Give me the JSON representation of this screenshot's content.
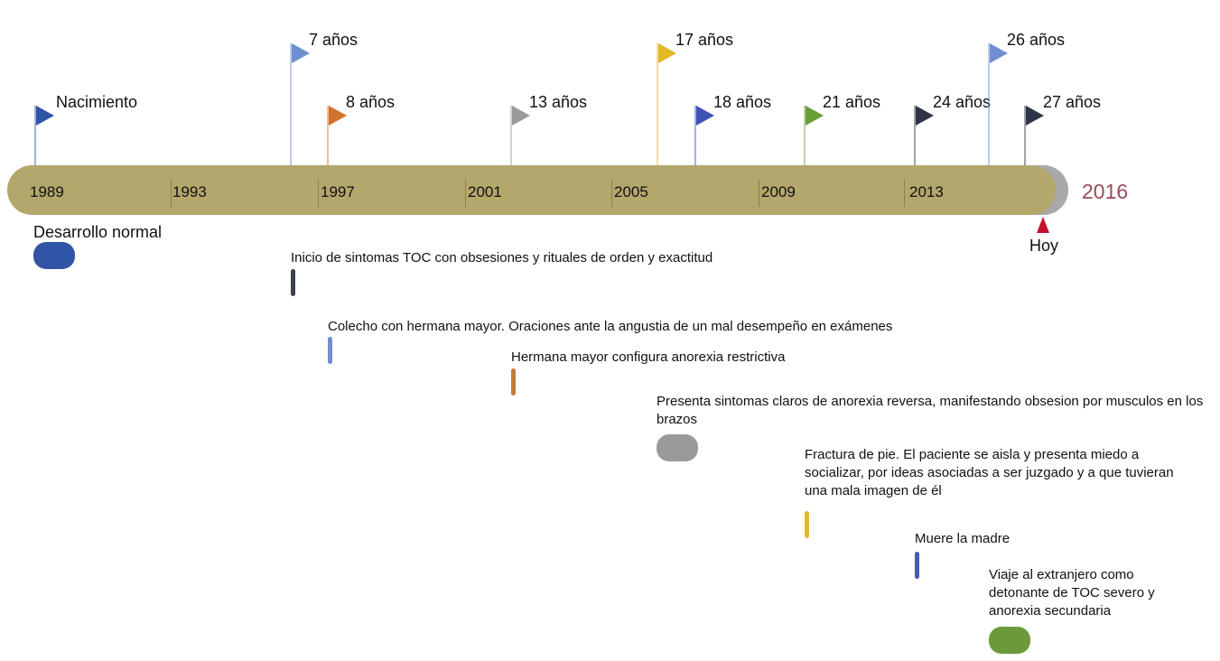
{
  "axis": {
    "years": [
      "1989",
      "1993",
      "1997",
      "2001",
      "2005",
      "2009",
      "2013"
    ],
    "end_year": "2016",
    "end_year_color": "#9b4a5a",
    "today_label": "Hoy",
    "bar_color": "#b3a76b"
  },
  "flags": [
    {
      "label": "Nacimiento",
      "color": "#3155a6"
    },
    {
      "label": "7 años",
      "color": "#6f8fd0"
    },
    {
      "label": "8 años",
      "color": "#d0732f"
    },
    {
      "label": "13 años",
      "color": "#9a9a9a"
    },
    {
      "label": "17 años",
      "color": "#e3b726"
    },
    {
      "label": "18 años",
      "color": "#4052b8"
    },
    {
      "label": "21 años",
      "color": "#6a9e38"
    },
    {
      "label": "24 años",
      "color": "#2e3548"
    },
    {
      "label": "26 años",
      "color": "#6f8fd0"
    },
    {
      "label": "27 años",
      "color": "#2e3548"
    }
  ],
  "events": [
    {
      "text": "Desarrollo normal",
      "color": "#3155a6"
    },
    {
      "text": "Inicio de sintomas TOC con obsesiones y rituales de orden y exactitud",
      "color": "#3a4250"
    },
    {
      "text": "Colecho con hermana mayor. Oraciones ante la angustia de un mal desempeño en exámenes",
      "color": "#6f8fcc"
    },
    {
      "text": "Hermana mayor configura anorexia restrictiva",
      "color": "#c47a3a"
    },
    {
      "text": "Presenta sintomas claros de anorexia reversa, manifestando obsesion por musculos en los brazos",
      "color": "#9a9a9a"
    },
    {
      "text": "Fractura de pie. El paciente se aisla y presenta miedo a socializar, por ideas asociadas a ser juzgado y a que tuvieran una mala imagen de él",
      "color": "#e0b92a"
    },
    {
      "text": "Muere la madre",
      "color": "#4a5ab0"
    },
    {
      "text": "Viaje al extranjero como detonante de TOC severo y anorexia secundaria",
      "color": "#6a9a3a"
    }
  ]
}
